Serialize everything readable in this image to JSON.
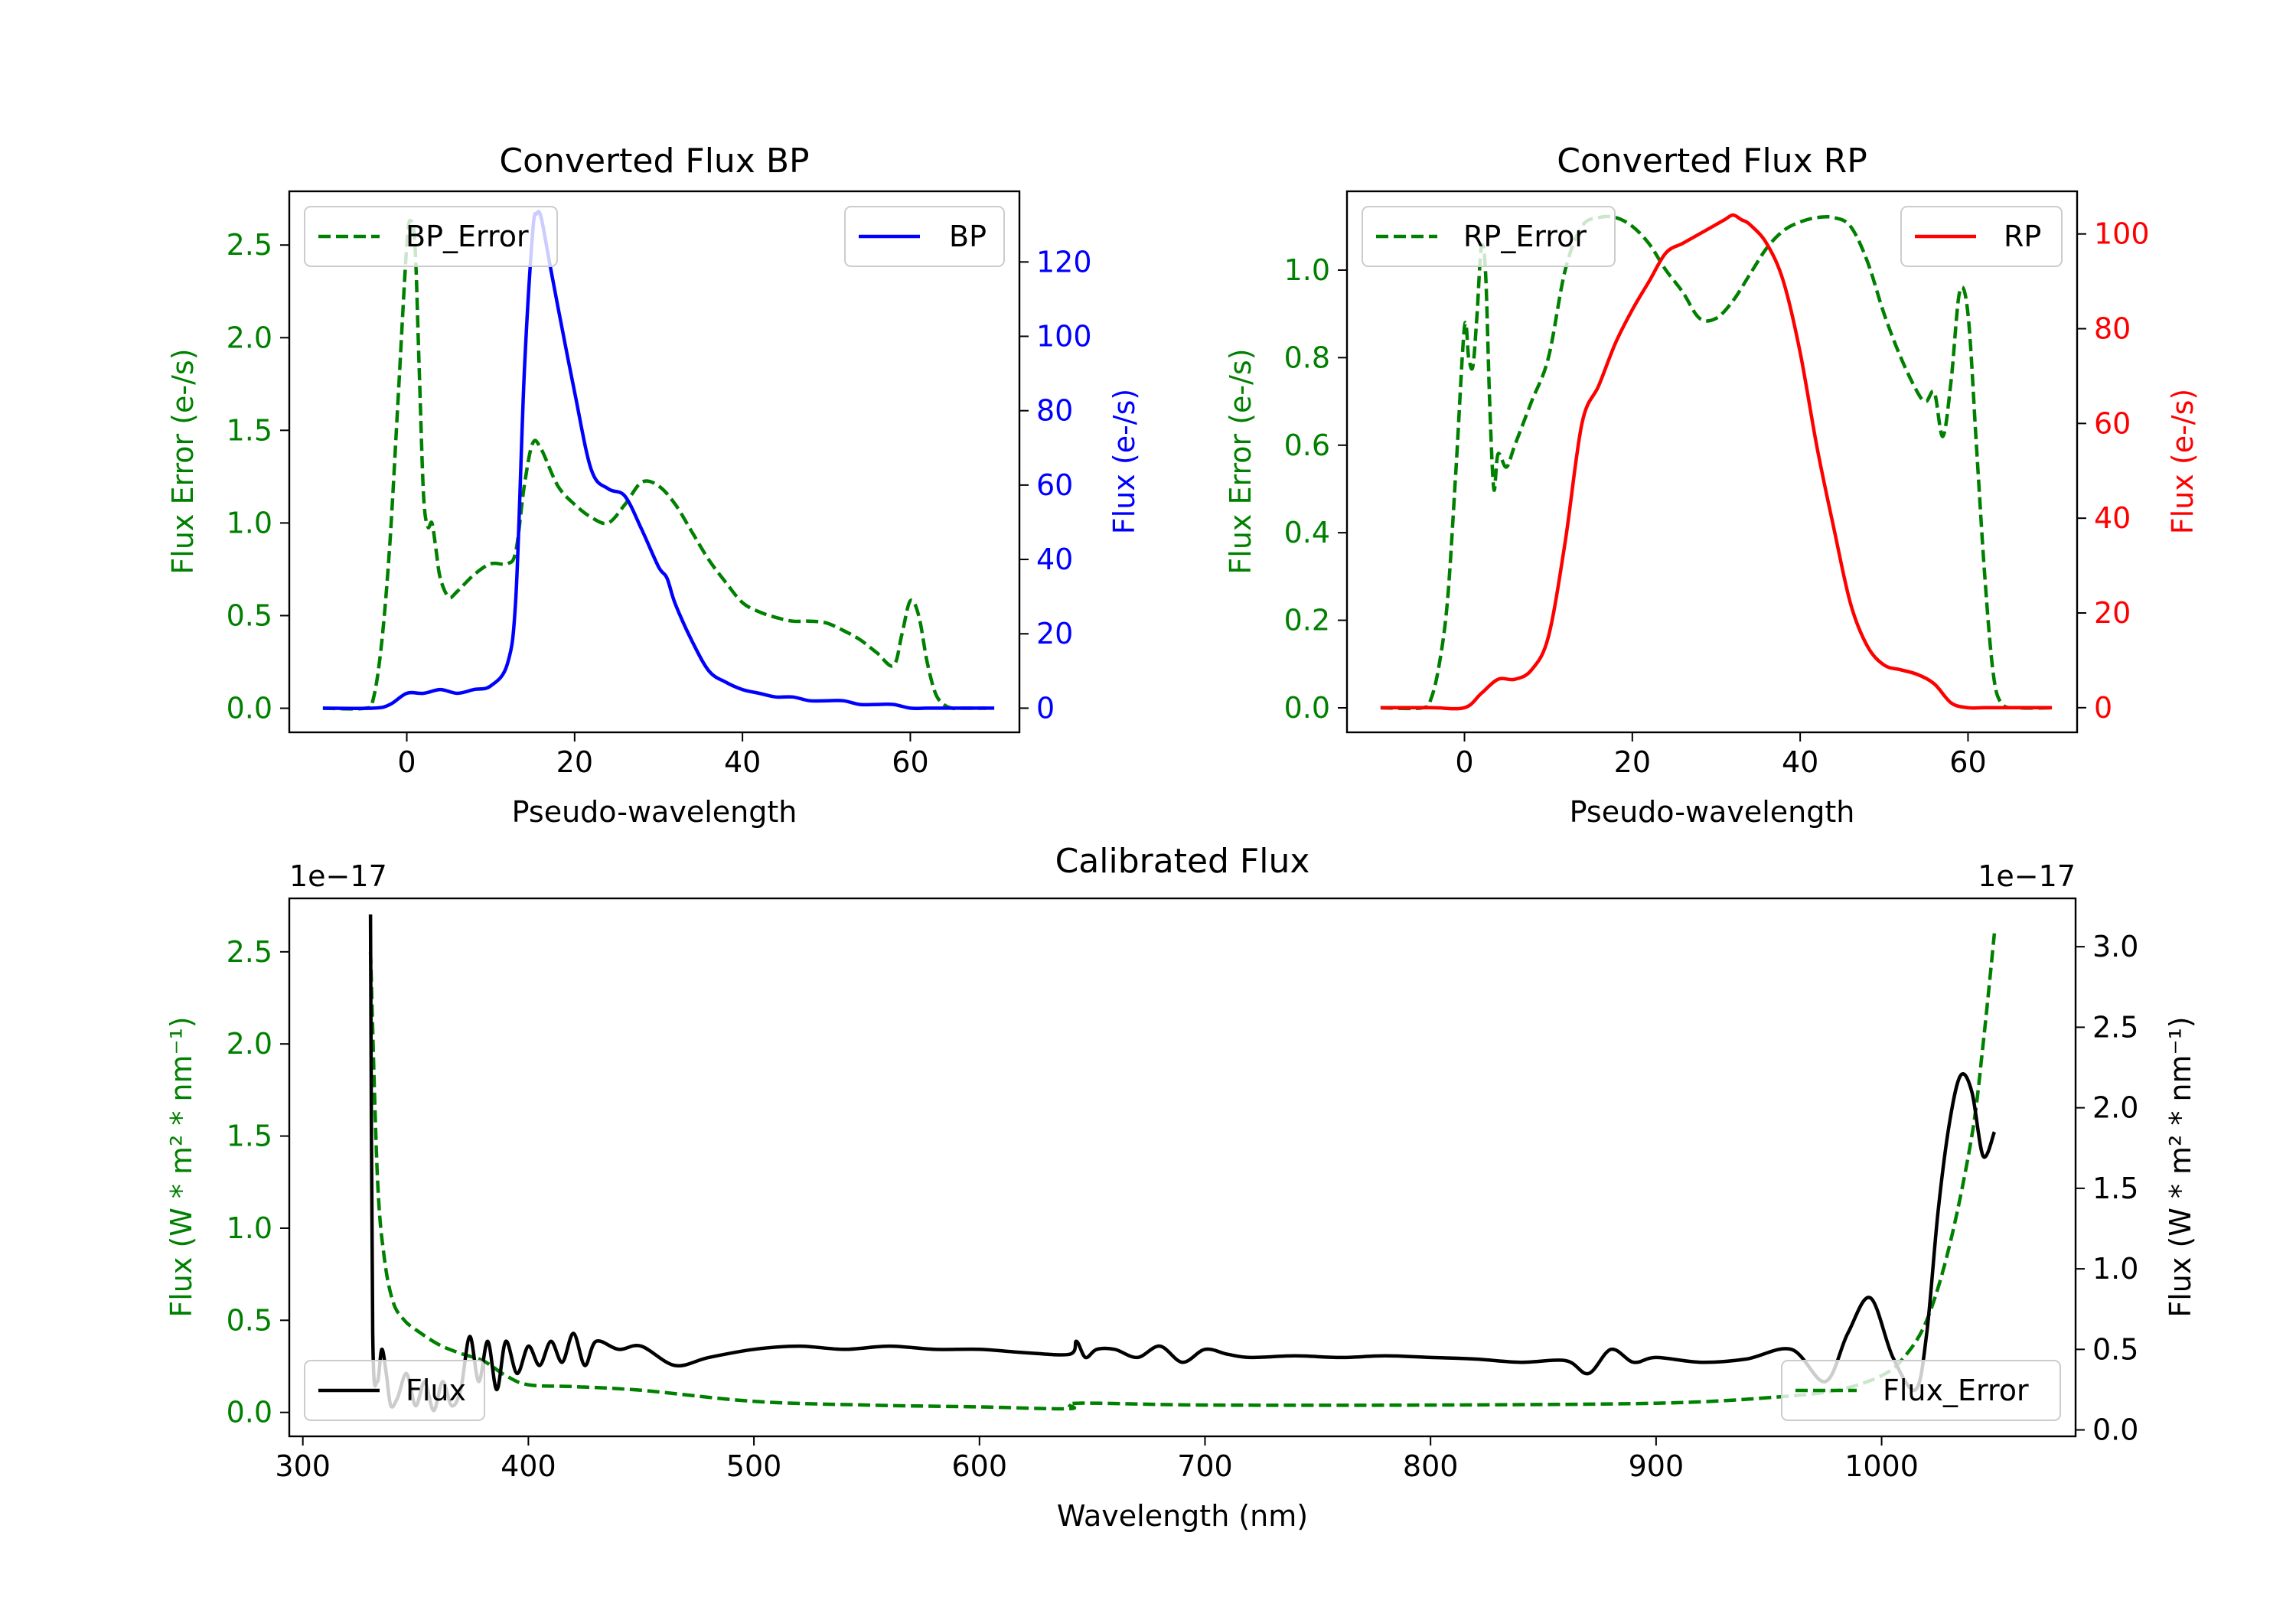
{
  "colors": {
    "green": "#008000",
    "blue": "#0000ff",
    "red": "#ff0000",
    "black": "#000000"
  },
  "chart_data": [
    {
      "id": "bp",
      "type": "line",
      "title": "Converted Flux BP",
      "xlabel": "Pseudo-wavelength",
      "ylabel_left": "Flux Error (e-/s)",
      "ylabel_right": "Flux (e-/s)",
      "xlim": [
        -14,
        73
      ],
      "ylim_left": [
        -0.13,
        2.79
      ],
      "ylim_right": [
        -6.5,
        139
      ],
      "xticks": [
        0,
        20,
        40,
        60
      ],
      "yticks_left": [
        0.0,
        0.5,
        1.0,
        1.5,
        2.0,
        2.5
      ],
      "yticks_right": [
        0,
        20,
        40,
        60,
        80,
        100,
        120
      ],
      "legend": [
        {
          "label": "BP_Error",
          "placement": "upper-left",
          "series": "error"
        },
        {
          "label": "BP",
          "placement": "upper-right",
          "series": "flux"
        }
      ],
      "series": [
        {
          "name": "BP_Error",
          "axis": "left",
          "style": "dashed",
          "color": "green",
          "x": [
            -10,
            -5,
            -4,
            -3,
            -2,
            -1,
            0,
            0.5,
            1,
            1.5,
            2,
            2.5,
            3,
            3.5,
            4,
            5,
            6,
            8,
            10,
            12,
            13,
            14,
            15,
            16,
            18,
            20,
            22,
            24,
            26,
            28,
            30,
            32,
            34,
            36,
            38,
            40,
            42,
            44,
            46,
            48,
            50,
            52,
            54,
            56,
            58,
            59,
            60,
            61,
            62,
            63,
            64,
            65,
            66,
            68,
            69
          ],
          "y": [
            0.0,
            0.0,
            0.05,
            0.35,
            0.9,
            1.7,
            2.5,
            2.63,
            2.48,
            1.8,
            1.15,
            0.98,
            1.0,
            0.85,
            0.7,
            0.6,
            0.63,
            0.72,
            0.78,
            0.78,
            0.85,
            1.2,
            1.43,
            1.4,
            1.2,
            1.1,
            1.03,
            1.0,
            1.1,
            1.22,
            1.2,
            1.1,
            0.95,
            0.8,
            0.68,
            0.57,
            0.52,
            0.49,
            0.47,
            0.47,
            0.46,
            0.42,
            0.37,
            0.3,
            0.23,
            0.4,
            0.58,
            0.5,
            0.25,
            0.08,
            0.02,
            0.0,
            0.0,
            0.0,
            0.0
          ]
        },
        {
          "name": "BP",
          "axis": "right",
          "style": "solid",
          "color": "blue",
          "x": [
            -10,
            -4,
            -2,
            0,
            2,
            4,
            6,
            8,
            10,
            12,
            13,
            14,
            15,
            15.5,
            16,
            17,
            18,
            20,
            22,
            24,
            26,
            28,
            30,
            31,
            32,
            34,
            36,
            38,
            40,
            42,
            44,
            46,
            48,
            50,
            52,
            54,
            56,
            58,
            60,
            62,
            64,
            66,
            68,
            70
          ],
          "y": [
            0,
            0,
            1,
            4,
            4,
            5,
            4,
            5,
            6,
            12,
            30,
            90,
            128,
            133,
            132,
            120,
            108,
            85,
            64,
            59,
            57,
            48,
            38,
            35,
            28,
            18,
            10,
            7,
            5,
            4,
            3,
            3,
            2,
            2,
            2,
            1,
            1,
            1,
            0,
            0,
            0,
            0,
            0,
            0
          ]
        }
      ]
    },
    {
      "id": "rp",
      "type": "line",
      "title": "Converted Flux RP",
      "xlabel": "Pseudo-wavelength",
      "ylabel_left": "Flux Error (e-/s)",
      "ylabel_right": "Flux (e-/s)",
      "xlim": [
        -14,
        73
      ],
      "ylim_left": [
        -0.056,
        1.18
      ],
      "ylim_right": [
        -5.2,
        109
      ],
      "xticks": [
        0,
        20,
        40,
        60
      ],
      "yticks_left": [
        0.0,
        0.2,
        0.4,
        0.6,
        0.8,
        1.0
      ],
      "yticks_right": [
        0,
        20,
        40,
        60,
        80,
        100
      ],
      "legend": [
        {
          "label": "RP_Error",
          "placement": "upper-left",
          "series": "error"
        },
        {
          "label": "RP",
          "placement": "upper-right",
          "series": "flux"
        }
      ],
      "series": [
        {
          "name": "RP_Error",
          "axis": "left",
          "style": "dashed",
          "color": "green",
          "x": [
            -10,
            -5,
            -4,
            -3,
            -2,
            -1,
            0,
            0.5,
            1,
            1.5,
            2,
            2.5,
            3,
            3.5,
            4,
            5,
            6,
            8,
            10,
            12,
            14,
            16,
            18,
            20,
            22,
            24,
            26,
            28,
            30,
            32,
            34,
            36,
            38,
            40,
            42,
            44,
            46,
            48,
            50,
            52,
            54,
            55,
            56,
            57,
            58,
            59,
            60,
            61,
            62,
            63,
            64,
            66,
            70
          ],
          "y": [
            0.0,
            0.0,
            0.02,
            0.1,
            0.25,
            0.55,
            0.87,
            0.8,
            0.78,
            0.9,
            1.05,
            1.0,
            0.7,
            0.5,
            0.58,
            0.55,
            0.6,
            0.7,
            0.8,
            1.0,
            1.1,
            1.12,
            1.12,
            1.1,
            1.06,
            1.0,
            0.95,
            0.89,
            0.89,
            0.93,
            0.99,
            1.05,
            1.09,
            1.11,
            1.12,
            1.12,
            1.1,
            1.02,
            0.9,
            0.8,
            0.72,
            0.7,
            0.72,
            0.62,
            0.75,
            0.95,
            0.9,
            0.6,
            0.3,
            0.08,
            0.01,
            0.0,
            0.0
          ]
        },
        {
          "name": "RP",
          "axis": "right",
          "style": "solid",
          "color": "red",
          "x": [
            -10,
            -4,
            0,
            2,
            4,
            6,
            8,
            10,
            12,
            14,
            16,
            18,
            20,
            22,
            24,
            26,
            28,
            30,
            31,
            32,
            33,
            34,
            36,
            38,
            40,
            42,
            44,
            46,
            48,
            50,
            52,
            54,
            56,
            58,
            60,
            62,
            64,
            66,
            70
          ],
          "y": [
            0,
            0,
            0,
            3,
            6,
            6,
            8,
            15,
            35,
            60,
            68,
            77,
            84,
            90,
            96,
            98,
            100,
            102,
            103,
            104,
            103,
            102,
            98,
            90,
            75,
            55,
            38,
            22,
            13,
            9,
            8,
            7,
            5,
            1,
            0,
            0,
            0,
            0,
            0
          ]
        }
      ]
    },
    {
      "id": "cal",
      "type": "line",
      "title": "Calibrated Flux",
      "xlabel": "Wavelength (nm)",
      "ylabel_left": "Flux (W * m² * nm⁻¹)",
      "ylabel_right": "Flux (W * m² * nm⁻¹)",
      "offset_left": "1e−17",
      "offset_right": "1e−17",
      "xlim": [
        294,
        1086
      ],
      "ylim_left": [
        -0.13,
        2.79
      ],
      "ylim_right": [
        -0.04,
        3.3
      ],
      "xticks": [
        300,
        400,
        500,
        600,
        700,
        800,
        900,
        1000
      ],
      "yticks_left": [
        0.0,
        0.5,
        1.0,
        1.5,
        2.0,
        2.5
      ],
      "yticks_right": [
        0.0,
        0.5,
        1.0,
        1.5,
        2.0,
        2.5,
        3.0
      ],
      "legend": [
        {
          "label": "Flux",
          "placement": "lower-left",
          "series": "flux"
        },
        {
          "label": "Flux_Error",
          "placement": "lower-right",
          "series": "error"
        }
      ],
      "series": [
        {
          "name": "Flux_Error",
          "axis": "left",
          "style": "dashed",
          "color": "green",
          "x": [
            330,
            333,
            336,
            340,
            345,
            350,
            360,
            370,
            380,
            390,
            400,
            420,
            450,
            500,
            550,
            600,
            640,
            643,
            700,
            800,
            900,
            950,
            980,
            1000,
            1010,
            1020,
            1030,
            1040,
            1045,
            1050
          ],
          "y": [
            2.5,
            1.3,
            0.85,
            0.6,
            0.5,
            0.45,
            0.37,
            0.32,
            0.28,
            0.2,
            0.15,
            0.14,
            0.12,
            0.06,
            0.04,
            0.03,
            0.02,
            0.05,
            0.04,
            0.04,
            0.05,
            0.08,
            0.12,
            0.2,
            0.3,
            0.5,
            0.9,
            1.5,
            2.0,
            2.6
          ]
        },
        {
          "name": "Flux",
          "axis": "right",
          "style": "solid",
          "color": "black",
          "x": [
            330,
            331,
            333,
            335,
            337,
            339,
            342,
            346,
            350,
            354,
            358,
            362,
            366,
            370,
            374,
            378,
            382,
            386,
            390,
            395,
            400,
            405,
            410,
            415,
            420,
            425,
            430,
            440,
            450,
            465,
            480,
            500,
            520,
            540,
            560,
            580,
            600,
            620,
            640,
            643,
            647,
            652,
            660,
            670,
            680,
            690,
            700,
            710,
            720,
            740,
            760,
            780,
            800,
            820,
            840,
            860,
            870,
            880,
            890,
            900,
            920,
            940,
            960,
            975,
            985,
            995,
            1005,
            1015,
            1020,
            1025,
            1030,
            1035,
            1040,
            1045,
            1050
          ],
          "y": [
            3.2,
            0.6,
            0.3,
            0.5,
            0.35,
            0.15,
            0.2,
            0.35,
            0.15,
            0.3,
            0.12,
            0.3,
            0.15,
            0.25,
            0.58,
            0.3,
            0.55,
            0.25,
            0.55,
            0.35,
            0.52,
            0.4,
            0.55,
            0.42,
            0.6,
            0.4,
            0.55,
            0.5,
            0.52,
            0.4,
            0.45,
            0.5,
            0.52,
            0.5,
            0.52,
            0.5,
            0.5,
            0.48,
            0.47,
            0.55,
            0.45,
            0.5,
            0.5,
            0.45,
            0.52,
            0.42,
            0.5,
            0.47,
            0.45,
            0.46,
            0.45,
            0.46,
            0.45,
            0.44,
            0.42,
            0.43,
            0.35,
            0.5,
            0.42,
            0.45,
            0.42,
            0.44,
            0.5,
            0.3,
            0.6,
            0.82,
            0.45,
            0.25,
            0.6,
            1.35,
            1.9,
            2.2,
            2.1,
            1.7,
            1.85
          ]
        }
      ]
    }
  ]
}
